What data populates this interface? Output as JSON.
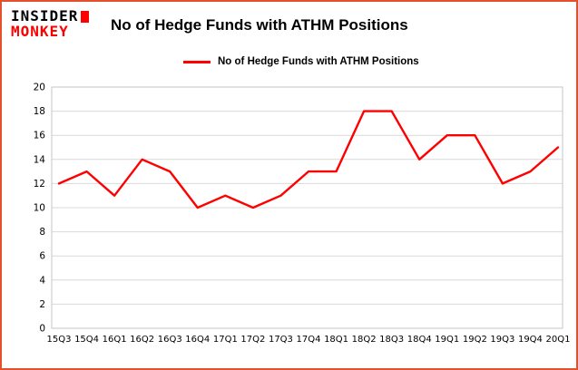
{
  "logo": {
    "line1": "INSIDER",
    "line2": "MONKEY"
  },
  "header": {
    "title": "No of Hedge Funds with ATHM Positions"
  },
  "legend": {
    "label": "No of Hedge Funds with ATHM Positions"
  },
  "colors": {
    "accent": "#fe0000",
    "page_border": "#e2502c",
    "grid": "#d9d9d9",
    "plot_border": "#c6c6c6",
    "text": "#000000"
  },
  "chart_data": {
    "type": "line",
    "title": "No of Hedge Funds with ATHM Positions",
    "categories": [
      "15Q3",
      "15Q4",
      "16Q1",
      "16Q2",
      "16Q3",
      "16Q4",
      "17Q1",
      "17Q2",
      "17Q3",
      "17Q4",
      "18Q1",
      "18Q2",
      "18Q3",
      "18Q4",
      "19Q1",
      "19Q2",
      "19Q3",
      "19Q4",
      "20Q1"
    ],
    "series": [
      {
        "name": "No of Hedge Funds with ATHM Positions",
        "values": [
          12,
          13,
          11,
          14,
          13,
          10,
          11,
          10,
          11,
          13,
          13,
          18,
          18,
          14,
          16,
          16,
          12,
          13,
          15
        ]
      }
    ],
    "xlabel": "",
    "ylabel": "",
    "ylim": [
      0,
      20
    ],
    "yticks": [
      0,
      2,
      4,
      6,
      8,
      10,
      12,
      14,
      16,
      18,
      20
    ],
    "grid": true,
    "legend_position": "top",
    "line_color": "#fe0000"
  }
}
